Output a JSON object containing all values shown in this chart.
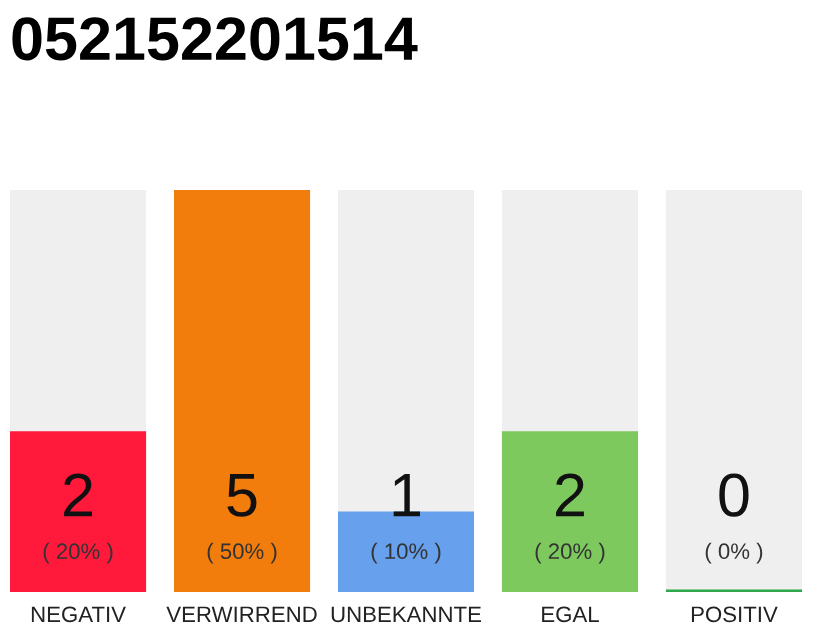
{
  "chart_data": {
    "type": "bar",
    "title": "052152201514",
    "categories": [
      "NEGATIV",
      "VERWIRREND",
      "UNBEKANNTE",
      "EGAL",
      "POSITIV"
    ],
    "values": [
      2,
      5,
      1,
      2,
      0
    ],
    "colors": [
      "#ff1a3c",
      "#f27d0c",
      "#67a0ec",
      "#7dc95e",
      "#2ea84a"
    ],
    "ylim": [
      0,
      5
    ],
    "data_labels": true,
    "annotations": [
      "( 20% )",
      "( 50% )",
      "( 10% )",
      "( 20% )",
      "( 0% )"
    ],
    "grid": false,
    "legend": false
  }
}
